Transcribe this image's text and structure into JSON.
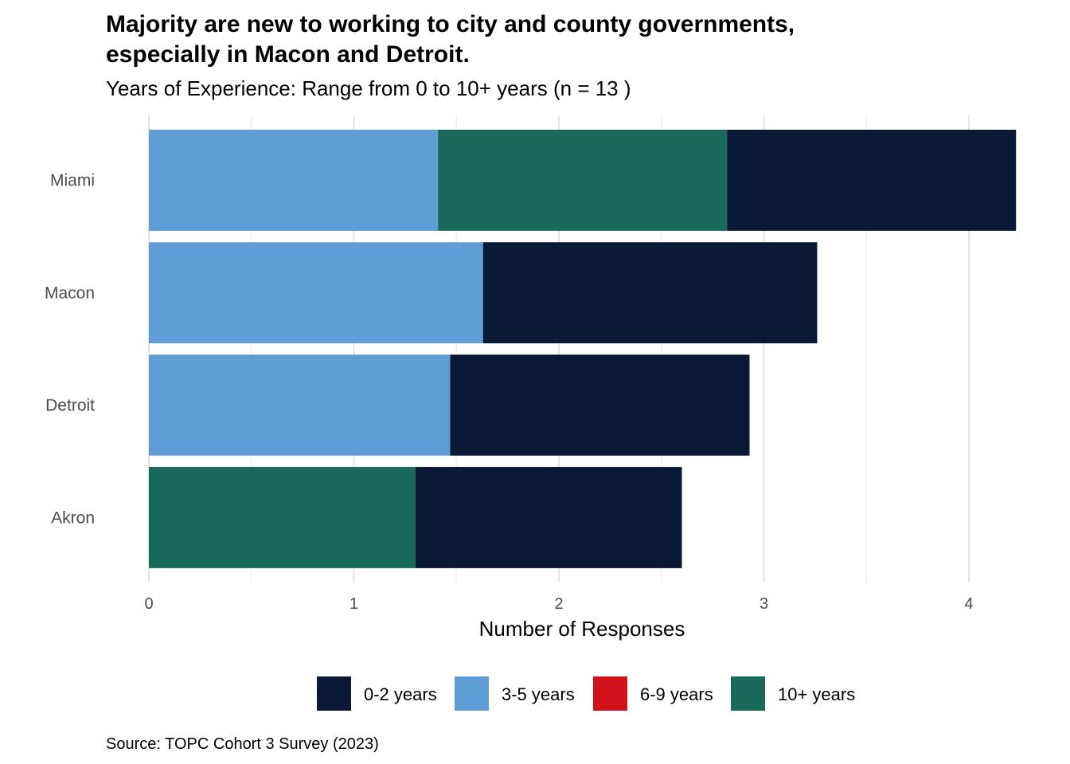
{
  "chart_data": {
    "type": "bar",
    "orientation": "horizontal",
    "stacked": true,
    "title_lines": [
      "Majority are new to working to city and county governments,",
      "especially in Macon and Detroit."
    ],
    "subtitle": "Years of Experience: Range from 0 to 10+ years (n = 13 )",
    "xlabel": "Number of Responses",
    "ylabel": "",
    "caption": "Source: TOPC Cohort 3 Survey (2023)",
    "categories": [
      "Miami",
      "Macon",
      "Detroit",
      "Akron"
    ],
    "series": [
      {
        "name": "3-5 years",
        "color": "#5f9dd6",
        "values": [
          1.41,
          1.63,
          1.47,
          0
        ]
      },
      {
        "name": "10+ years",
        "color": "#1a6a5c",
        "values": [
          1.41,
          0,
          0,
          1.3
        ]
      },
      {
        "name": "0-2 years",
        "color": "#091834",
        "values": [
          1.41,
          1.63,
          1.46,
          1.3
        ]
      },
      {
        "name": "6-9 years",
        "color": "#d0121b",
        "values": [
          0,
          0,
          0,
          0
        ]
      }
    ],
    "xlim": [
      0,
      4.25
    ],
    "xticks": [
      "0",
      "1",
      "2",
      "3",
      "4"
    ],
    "grid": true,
    "legend_position": "bottom",
    "legend": [
      {
        "name": "0-2 years",
        "color": "#091834"
      },
      {
        "name": "3-5 years",
        "color": "#5f9dd6"
      },
      {
        "name": "6-9 years",
        "color": "#d0121b"
      },
      {
        "name": "10+ years",
        "color": "#1a6a5c"
      }
    ]
  }
}
